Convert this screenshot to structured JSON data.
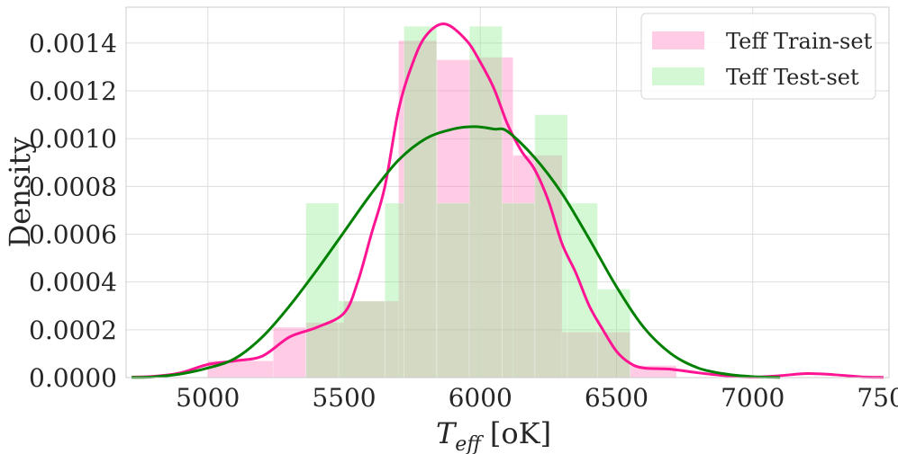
{
  "chart_data": {
    "type": "bar",
    "xlabel": "T",
    "xlabel_sub": "eff",
    "xlabel_unit": "[oK]",
    "ylabel": "Density",
    "xlim": [
      4700,
      7500
    ],
    "ylim": [
      0,
      0.00155
    ],
    "x_ticks": [
      5000,
      5500,
      6000,
      6500,
      7000,
      7500
    ],
    "y_ticks": [
      0,
      0.0002,
      0.0004,
      0.0006,
      0.0008,
      0.001,
      0.0012,
      0.0014
    ],
    "y_tick_labels": [
      "0.0000",
      "0.0002",
      "0.0004",
      "0.0006",
      "0.0008",
      "0.0010",
      "0.0012",
      "0.0014"
    ],
    "grid": true,
    "legend_position": "top-right",
    "series": [
      {
        "name": "Teff Train-set",
        "color": "#ff69b4",
        "bars": [
          {
            "x0": 5000,
            "x1": 5240,
            "y": 7e-05
          },
          {
            "x0": 5240,
            "x1": 5360,
            "y": 0.00021
          },
          {
            "x0": 5360,
            "x1": 5500,
            "y": 0.00023
          },
          {
            "x0": 5500,
            "x1": 5700,
            "y": 0.00032
          },
          {
            "x0": 5700,
            "x1": 5840,
            "y": 0.00141
          },
          {
            "x0": 5840,
            "x1": 6000,
            "y": 0.00133
          },
          {
            "x0": 6000,
            "x1": 6120,
            "y": 0.00134
          },
          {
            "x0": 6120,
            "x1": 6300,
            "y": 0.00093
          },
          {
            "x0": 6300,
            "x1": 6550,
            "y": 0.00019
          },
          {
            "x0": 6550,
            "x1": 6720,
            "y": 5e-05
          }
        ],
        "kde": [
          [
            4720,
            2e-06
          ],
          [
            4800,
            5e-06
          ],
          [
            4900,
            2e-05
          ],
          [
            5000,
            5.5e-05
          ],
          [
            5100,
            7e-05
          ],
          [
            5200,
            9e-05
          ],
          [
            5300,
            0.00017
          ],
          [
            5400,
            0.00021
          ],
          [
            5500,
            0.00027
          ],
          [
            5550,
            0.0004
          ],
          [
            5600,
            0.0006
          ],
          [
            5650,
            0.0008
          ],
          [
            5700,
            0.00112
          ],
          [
            5750,
            0.00131
          ],
          [
            5800,
            0.00143
          ],
          [
            5870,
            0.00148
          ],
          [
            5950,
            0.00141
          ],
          [
            6000,
            0.00132
          ],
          [
            6050,
            0.00121
          ],
          [
            6100,
            0.00106
          ],
          [
            6150,
            0.00095
          ],
          [
            6200,
            0.00087
          ],
          [
            6250,
            0.00074
          ],
          [
            6300,
            0.00056
          ],
          [
            6350,
            0.00044
          ],
          [
            6400,
            0.0003
          ],
          [
            6450,
            0.0002
          ],
          [
            6500,
            0.00011
          ],
          [
            6550,
            6e-05
          ],
          [
            6600,
            4e-05
          ],
          [
            6700,
            3.5e-05
          ],
          [
            6800,
            2e-05
          ],
          [
            6900,
            8e-06
          ],
          [
            7000,
            2e-06
          ],
          [
            7100,
            8e-06
          ],
          [
            7200,
            1.7e-05
          ],
          [
            7300,
            1.2e-05
          ],
          [
            7400,
            3e-06
          ],
          [
            7480,
            1e-06
          ]
        ]
      },
      {
        "name": "Teff Test-set",
        "color": "#90ee90",
        "bars": [
          {
            "x0": 5360,
            "x1": 5480,
            "y": 0.00073
          },
          {
            "x0": 5480,
            "x1": 5650,
            "y": 0.00032
          },
          {
            "x0": 5650,
            "x1": 5720,
            "y": 0.00073
          },
          {
            "x0": 5720,
            "x1": 5840,
            "y": 0.00147
          },
          {
            "x0": 5840,
            "x1": 5960,
            "y": 0.00073
          },
          {
            "x0": 5960,
            "x1": 6080,
            "y": 0.00147
          },
          {
            "x0": 6080,
            "x1": 6200,
            "y": 0.00073
          },
          {
            "x0": 6200,
            "x1": 6320,
            "y": 0.0011
          },
          {
            "x0": 6320,
            "x1": 6430,
            "y": 0.00073
          },
          {
            "x0": 6430,
            "x1": 6550,
            "y": 0.00037
          }
        ],
        "kde": [
          [
            4720,
            1e-06
          ],
          [
            4800,
            3e-06
          ],
          [
            4900,
            1.5e-05
          ],
          [
            5000,
            4e-05
          ],
          [
            5100,
            8e-05
          ],
          [
            5200,
            0.00017
          ],
          [
            5300,
            0.0003
          ],
          [
            5400,
            0.00045
          ],
          [
            5500,
            0.00061
          ],
          [
            5600,
            0.00077
          ],
          [
            5700,
            0.00091
          ],
          [
            5800,
            0.001
          ],
          [
            5900,
            0.00104
          ],
          [
            5980,
            0.00105
          ],
          [
            6050,
            0.00104
          ],
          [
            6100,
            0.00103
          ],
          [
            6200,
            0.00092
          ],
          [
            6300,
            0.00077
          ],
          [
            6400,
            0.00058
          ],
          [
            6500,
            0.00038
          ],
          [
            6600,
            0.00021
          ],
          [
            6700,
            0.0001
          ],
          [
            6800,
            4e-05
          ],
          [
            6900,
            1.5e-05
          ],
          [
            7000,
            4e-06
          ],
          [
            7100,
            1e-06
          ]
        ]
      }
    ]
  }
}
